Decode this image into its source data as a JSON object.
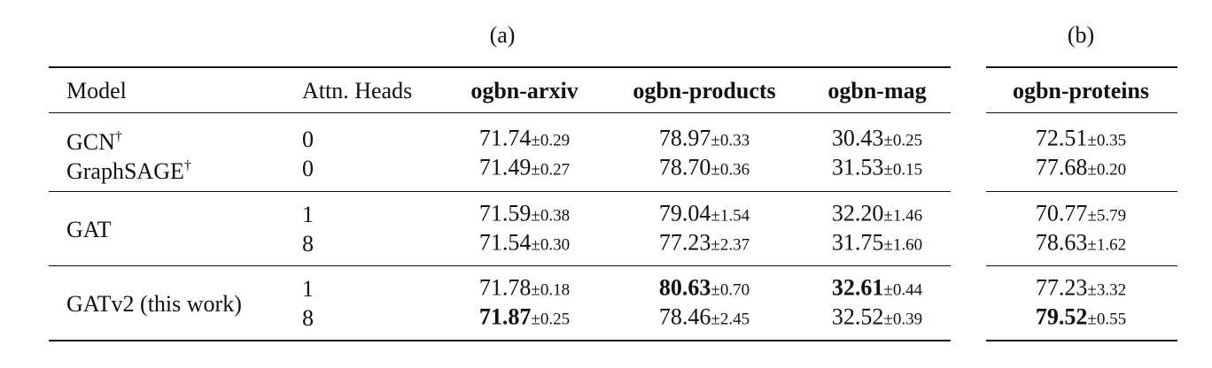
{
  "captions": {
    "a": "(a)",
    "b": "(b)"
  },
  "table_a": {
    "header": [
      "Model",
      "Attn. Heads",
      "ogbn-arxiv",
      "ogbn-products",
      "ogbn-mag"
    ],
    "groups": [
      {
        "rows": [
          {
            "model": "GCN",
            "marker": "†",
            "heads": "0",
            "cells": [
              {
                "mean": "71.74",
                "std": "±0.29"
              },
              {
                "mean": "78.97",
                "std": "±0.33"
              },
              {
                "mean": "30.43",
                "std": "±0.25"
              }
            ]
          },
          {
            "model": "GraphSAGE",
            "marker": "†",
            "heads": "0",
            "cells": [
              {
                "mean": "71.49",
                "std": "±0.27"
              },
              {
                "mean": "78.70",
                "std": "±0.36"
              },
              {
                "mean": "31.53",
                "std": "±0.15"
              }
            ]
          }
        ]
      },
      {
        "model": "GAT",
        "rows": [
          {
            "heads": "1",
            "cells": [
              {
                "mean": "71.59",
                "std": "±0.38"
              },
              {
                "mean": "79.04",
                "std": "±1.54"
              },
              {
                "mean": "32.20",
                "std": "±1.46"
              }
            ]
          },
          {
            "heads": "8",
            "cells": [
              {
                "mean": "71.54",
                "std": "±0.30"
              },
              {
                "mean": "77.23",
                "std": "±2.37"
              },
              {
                "mean": "31.75",
                "std": "±1.60"
              }
            ]
          }
        ]
      },
      {
        "model": "GATv2 (this work)",
        "rows": [
          {
            "heads": "1",
            "cells": [
              {
                "mean": "71.78",
                "std": "±0.18"
              },
              {
                "mean": "80.63",
                "std": "±0.70",
                "bold": true
              },
              {
                "mean": "32.61",
                "std": "±0.44",
                "bold": true
              }
            ]
          },
          {
            "heads": "8",
            "cells": [
              {
                "mean": "71.87",
                "std": "±0.25",
                "bold": true
              },
              {
                "mean": "78.46",
                "std": "±2.45"
              },
              {
                "mean": "32.52",
                "std": "±0.39"
              }
            ]
          }
        ]
      }
    ]
  },
  "table_b": {
    "header": [
      "ogbn-proteins"
    ],
    "groups": [
      {
        "rows": [
          {
            "cells": [
              {
                "mean": "72.51",
                "std": "±0.35"
              }
            ]
          },
          {
            "cells": [
              {
                "mean": "77.68",
                "std": "±0.20"
              }
            ]
          }
        ]
      },
      {
        "rows": [
          {
            "cells": [
              {
                "mean": "70.77",
                "std": "±5.79"
              }
            ]
          },
          {
            "cells": [
              {
                "mean": "78.63",
                "std": "±1.62"
              }
            ]
          }
        ]
      },
      {
        "rows": [
          {
            "cells": [
              {
                "mean": "77.23",
                "std": "±3.32"
              }
            ]
          },
          {
            "cells": [
              {
                "mean": "79.52",
                "std": "±0.55",
                "bold": true
              }
            ]
          }
        ]
      }
    ]
  }
}
